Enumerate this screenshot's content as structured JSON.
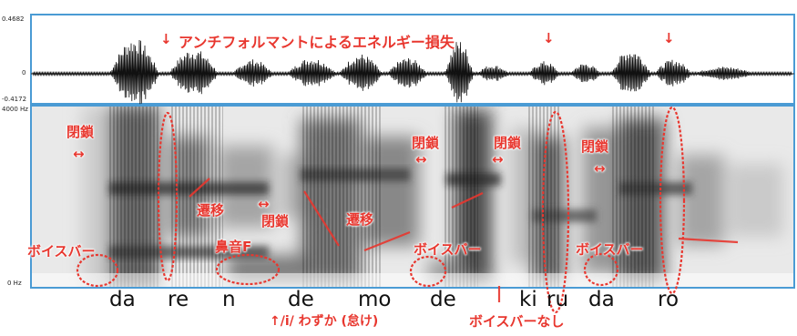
{
  "colors": {
    "annotation": "#e8372f",
    "frame": "#4a9bd4",
    "waveform": "#111111"
  },
  "waveform": {
    "axis_top": "0.4682",
    "axis_zero": "0",
    "axis_bottom": "-0.4172",
    "title": "アンチフォルマントによるエネルギー損失"
  },
  "spectrogram": {
    "axis_top": "4000 Hz",
    "axis_bottom": "0 Hz"
  },
  "annotations": {
    "closure1": "閉鎖",
    "closure2": "閉鎖",
    "closure3": "閉鎖",
    "closure4": "閉鎖",
    "closure5": "閉鎖",
    "transition1": "遷移",
    "transition2": "遷移",
    "nasal_f": "鼻音F",
    "voicebar1": "ボイスバー",
    "voicebar2": "ボイスバー",
    "voicebar3": "ボイスバー",
    "i_lazy": "↑/i/ わずか (怠け)",
    "no_voicebar": "ボイスバーなし",
    "double_arrow": "↔",
    "down_arrow": "↓"
  },
  "syllables": [
    "da",
    "re",
    "n",
    "de",
    "mo",
    "de",
    "ki",
    "ru",
    "da",
    "ro"
  ]
}
